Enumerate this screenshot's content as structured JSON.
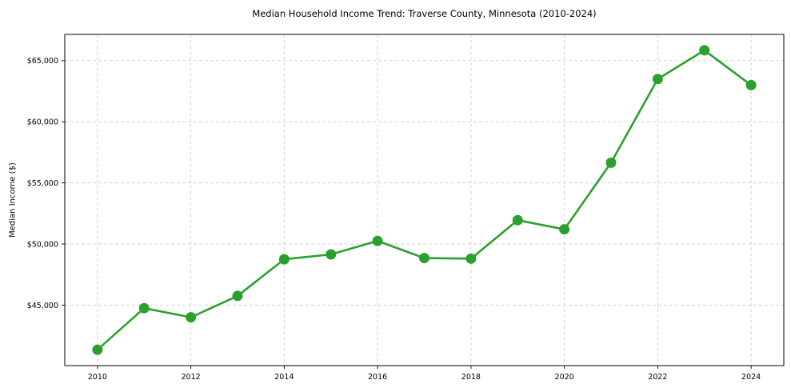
{
  "chart_data": {
    "type": "line",
    "title": "Median Household Income Trend: Traverse County, Minnesota (2010-2024)",
    "xlabel": "",
    "ylabel": "Median Income ($)",
    "x": [
      2010,
      2011,
      2012,
      2013,
      2014,
      2015,
      2016,
      2017,
      2018,
      2019,
      2020,
      2021,
      2022,
      2023,
      2024
    ],
    "series": [
      {
        "name": "Median Household Income",
        "color": "#2ca02c",
        "marker": "circle",
        "values": [
          41350,
          44750,
          44000,
          45750,
          48750,
          49150,
          50250,
          48850,
          48800,
          51950,
          51200,
          56650,
          63500,
          65850,
          63000
        ]
      }
    ],
    "x_ticks": {
      "values": [
        2010,
        2012,
        2014,
        2016,
        2018,
        2020,
        2022,
        2024
      ],
      "labels": [
        "2010",
        "2012",
        "2014",
        "2016",
        "2018",
        "2020",
        "2022",
        "2024"
      ]
    },
    "y_ticks": {
      "values": [
        45000,
        50000,
        55000,
        60000,
        65000
      ],
      "labels": [
        "$45,000",
        "$50,000",
        "$55,000",
        "$60,000",
        "$65,000"
      ]
    },
    "xlim": [
      2009.3,
      2024.7
    ],
    "ylim": [
      40050,
      67150
    ],
    "grid": true,
    "grid_style": "dashed",
    "legend": false
  },
  "colors": {
    "line": "#2ca02c",
    "grid": "#cfcfcf",
    "spine": "#000000",
    "text": "#000000",
    "background": "#ffffff"
  }
}
